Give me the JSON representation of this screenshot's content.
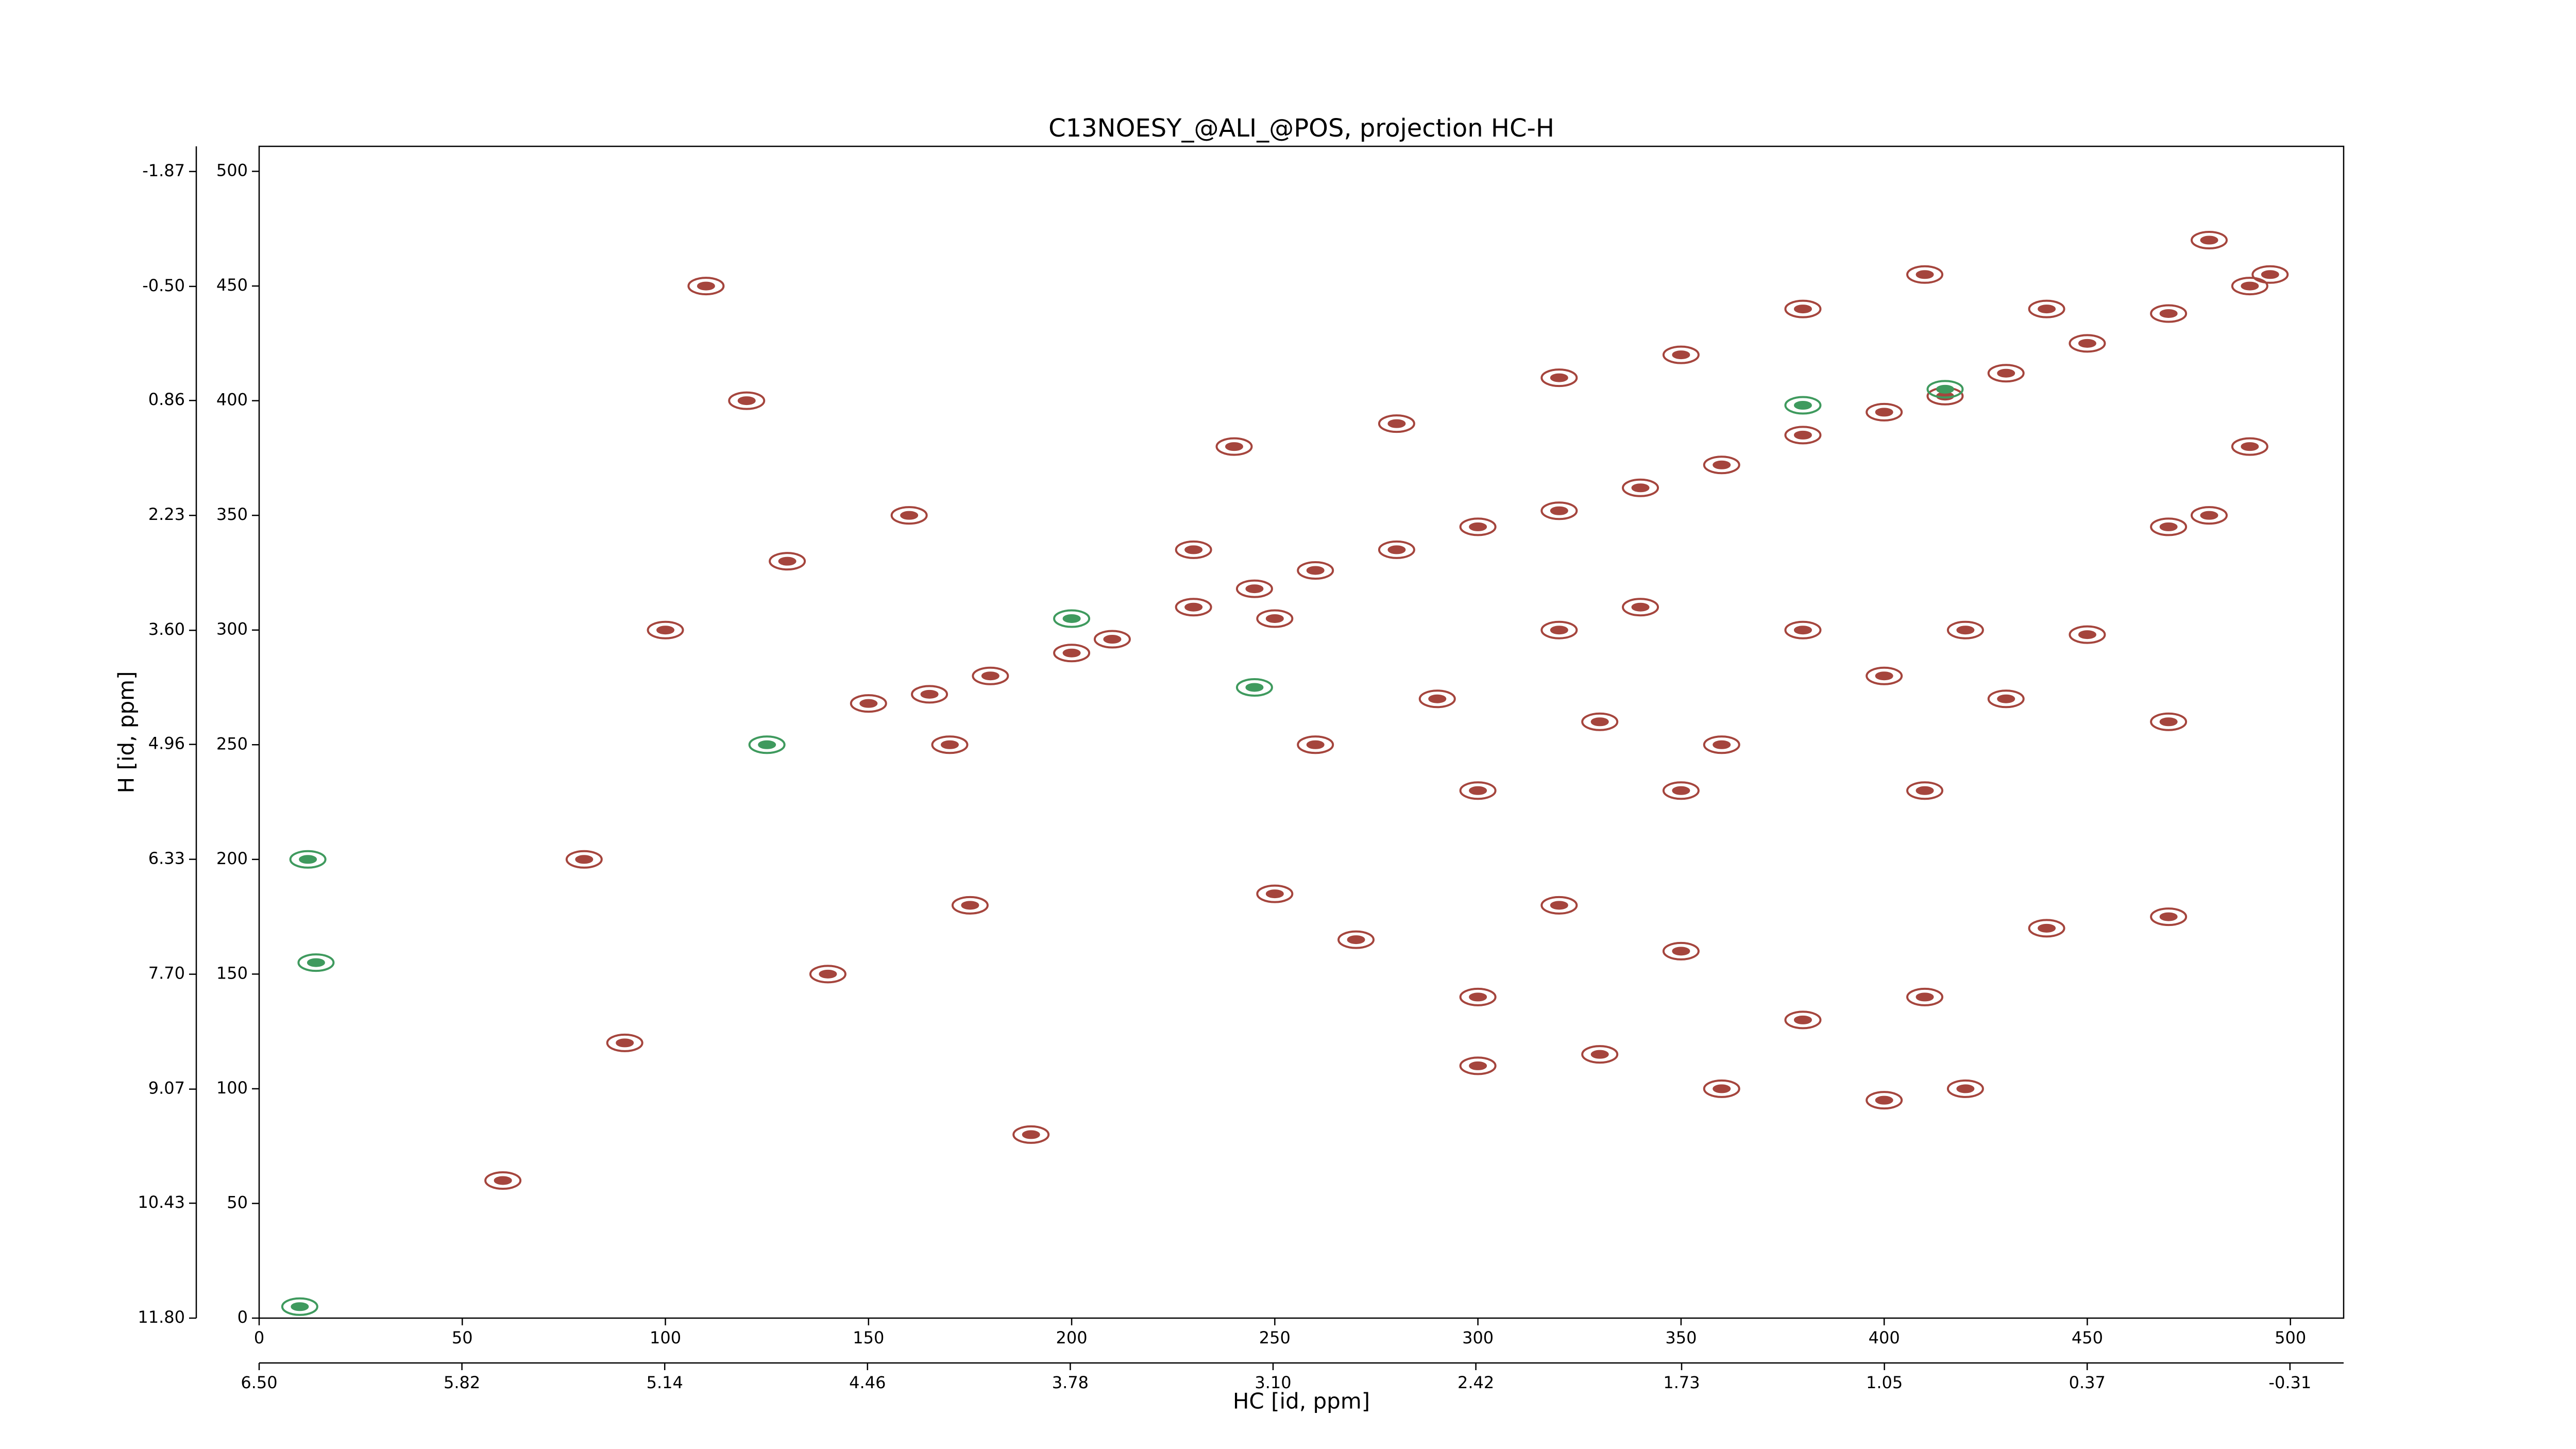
{
  "chart_data": {
    "type": "contour",
    "title": "C13NOESY_@ALI_@POS, projection HC-H",
    "xlabel": "HC [id, ppm]",
    "ylabel": "H [id, ppm]",
    "xlim": [
      0,
      513.1
    ],
    "xticks": [
      0,
      50,
      100,
      150,
      200,
      250,
      300,
      350,
      400,
      450,
      500
    ],
    "ylim": [
      0,
      510.9
    ],
    "yticks": [
      0,
      50,
      100,
      150,
      200,
      250,
      300,
      350,
      400,
      450,
      500
    ],
    "x2lim": [
      6.5,
      -0.49
    ],
    "x2ticks": [
      {
        "value": 6.5,
        "label": "6.50"
      },
      5.82,
      5.14,
      4.46,
      3.78,
      {
        "value": 3.1,
        "label": "3.10"
      },
      2.42,
      1.73,
      1.05,
      0.37,
      -0.31
    ],
    "y2lim": [
      11.8,
      -2.17
    ],
    "y2ticks": [
      {
        "value": 11.8,
        "label": "11.80"
      },
      10.43,
      9.07,
      {
        "value": 7.7,
        "label": "7.70"
      },
      6.33,
      4.96,
      {
        "value": 3.6,
        "label": "3.60"
      },
      2.23,
      0.86,
      {
        "value": -0.5,
        "label": "-0.50"
      },
      -1.87
    ],
    "series": [
      {
        "color": "#a5453d",
        "x": [
          150,
          165,
          180,
          200,
          210,
          230,
          245,
          260,
          280,
          300,
          320,
          340,
          360,
          380,
          400,
          415,
          430,
          450,
          470,
          490,
          495,
          250,
          270,
          300,
          320,
          350,
          380,
          410,
          440,
          470,
          300,
          330,
          360,
          400,
          420,
          260,
          290,
          330,
          360,
          400,
          430,
          470,
          280,
          320,
          350,
          380,
          410,
          440,
          480,
          230,
          320,
          340,
          380,
          420,
          450,
          470,
          250,
          300,
          350,
          410,
          240,
          480,
          490,
          80,
          100,
          120,
          140,
          170,
          90,
          110,
          160,
          190,
          60,
          130,
          175
        ],
        "values": [
          268,
          272,
          280,
          290,
          296,
          310,
          318,
          326,
          335,
          345,
          352,
          362,
          372,
          385,
          395,
          402,
          412,
          425,
          438,
          450,
          455,
          185,
          165,
          140,
          180,
          160,
          130,
          140,
          170,
          175,
          110,
          115,
          100,
          95,
          100,
          250,
          270,
          260,
          250,
          280,
          270,
          260,
          390,
          410,
          420,
          440,
          455,
          440,
          470,
          335,
          300,
          310,
          300,
          300,
          298,
          345,
          305,
          230,
          230,
          230,
          380,
          350,
          380,
          200,
          300,
          400,
          150,
          250,
          120,
          450,
          350,
          80,
          60,
          330,
          180
        ]
      },
      {
        "color": "#3f9a5e",
        "x": [
          12,
          14,
          200,
          380,
          415,
          245,
          125,
          10
        ],
        "values": [
          200,
          155,
          305,
          398,
          405,
          275,
          250,
          5
        ]
      }
    ]
  }
}
